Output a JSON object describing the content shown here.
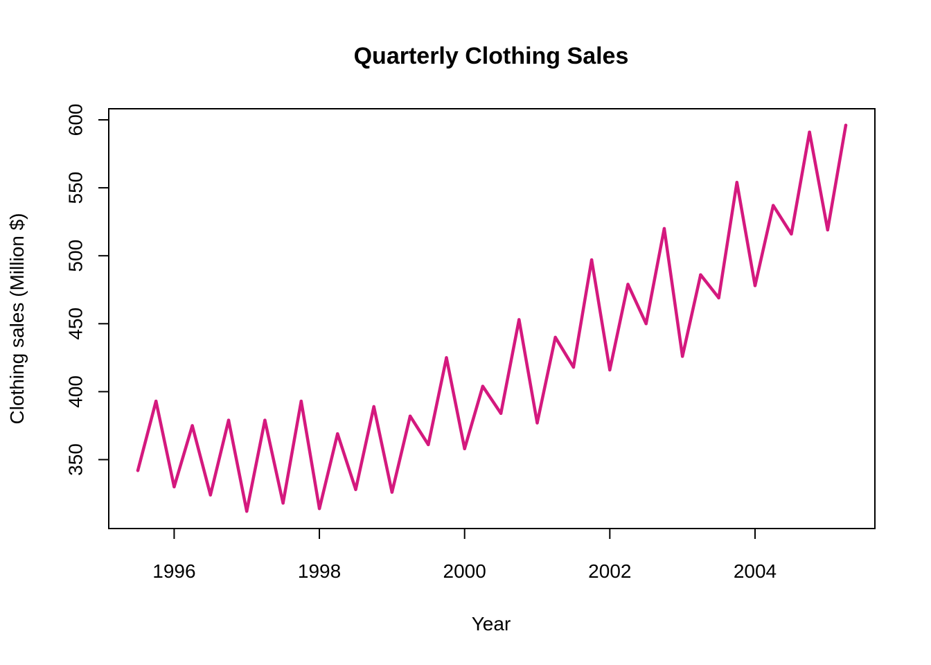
{
  "chart_data": {
    "type": "line",
    "title": "Quarterly Clothing Sales",
    "xlabel": "Year",
    "ylabel": "Clothing sales (Million $)",
    "xlim": [
      1995.5,
      2005.25
    ],
    "ylim": [
      310,
      600
    ],
    "xticks": [
      1996,
      1998,
      2000,
      2002,
      2004
    ],
    "yticks": [
      350,
      400,
      450,
      500,
      550,
      600
    ],
    "grid": false,
    "legend": "none",
    "series": [
      {
        "color": "#d4197e",
        "x": [
          1995.5,
          1995.75,
          1996.0,
          1996.25,
          1996.5,
          1996.75,
          1997.0,
          1997.25,
          1997.5,
          1997.75,
          1998.0,
          1998.25,
          1998.5,
          1998.75,
          1999.0,
          1999.25,
          1999.5,
          1999.75,
          2000.0,
          2000.25,
          2000.5,
          2000.75,
          2001.0,
          2001.25,
          2001.5,
          2001.75,
          2002.0,
          2002.25,
          2002.5,
          2002.75,
          2003.0,
          2003.25,
          2003.5,
          2003.75,
          2004.0,
          2004.25,
          2004.5,
          2004.75,
          2005.0,
          2005.25
        ],
        "values": [
          342,
          393,
          330,
          375,
          324,
          379,
          312,
          379,
          318,
          393,
          314,
          369,
          328,
          389,
          326,
          382,
          361,
          425,
          358,
          404,
          384,
          453,
          377,
          440,
          418,
          497,
          416,
          479,
          450,
          520,
          426,
          486,
          469,
          554,
          478,
          537,
          516,
          591,
          519,
          596
        ]
      }
    ]
  }
}
